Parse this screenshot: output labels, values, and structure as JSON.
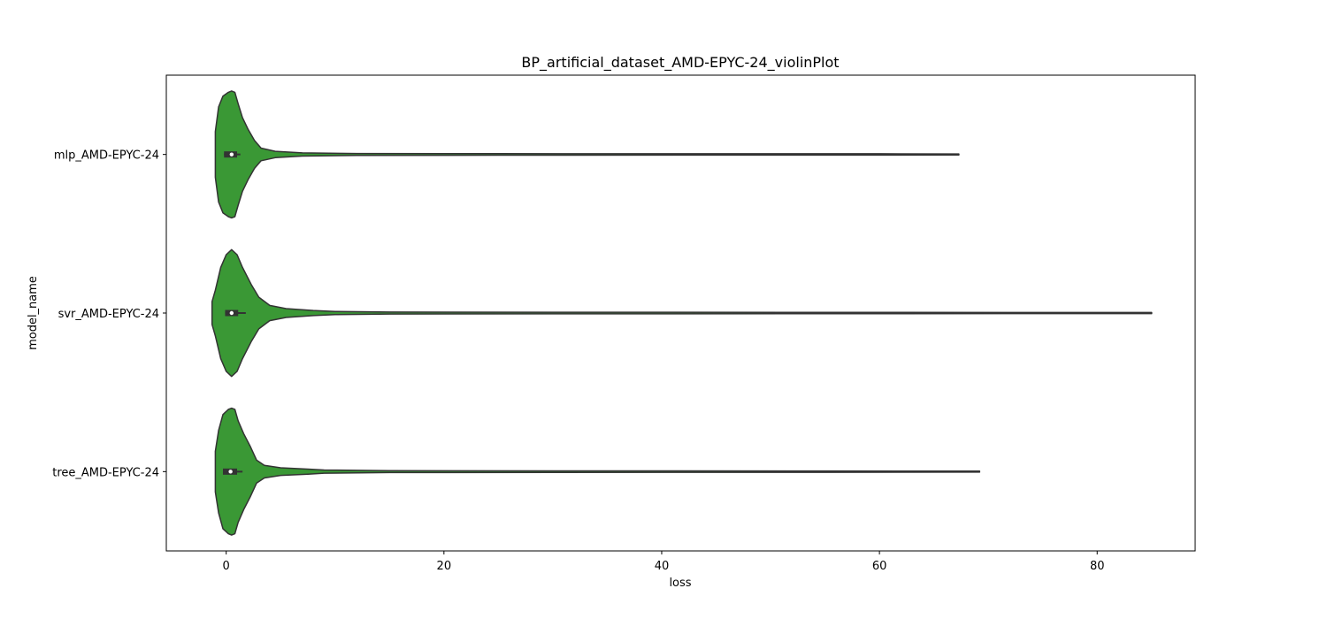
{
  "chart_data": {
    "type": "violin",
    "title": "BP_artificial_dataset_AMD-EPYC-24_violinPlot",
    "xlabel": "loss",
    "ylabel": "model_name",
    "xlim": [
      -5.5,
      89
    ],
    "x_ticks": [
      0,
      20,
      40,
      60,
      80
    ],
    "grid": false,
    "orientation": "horizontal",
    "fill_color": "#3a9835",
    "edge_color": "#333333",
    "categories": [
      "mlp_AMD-EPYC-24",
      "svr_AMD-EPYC-24",
      "tree_AMD-EPYC-24"
    ],
    "series": [
      {
        "category": "mlp_AMD-EPYC-24",
        "min": -1.0,
        "max": 67.3,
        "q1": -0.2,
        "median": 0.5,
        "q3": 1.0,
        "whisker_low": -0.2,
        "whisker_high": 1.3,
        "density": [
          [
            -1.0,
            0.36
          ],
          [
            -0.7,
            0.75
          ],
          [
            -0.3,
            0.92
          ],
          [
            0.2,
            0.98
          ],
          [
            0.5,
            1.0
          ],
          [
            0.8,
            0.98
          ],
          [
            1.1,
            0.8
          ],
          [
            1.5,
            0.58
          ],
          [
            2.0,
            0.4
          ],
          [
            2.6,
            0.22
          ],
          [
            3.2,
            0.1
          ],
          [
            4.5,
            0.05
          ],
          [
            7,
            0.025
          ],
          [
            12,
            0.015
          ],
          [
            25,
            0.012
          ],
          [
            45,
            0.01
          ],
          [
            60,
            0.01
          ],
          [
            67.3,
            0.008
          ]
        ]
      },
      {
        "category": "svr_AMD-EPYC-24",
        "min": -1.3,
        "max": 85.0,
        "q1": -0.1,
        "median": 0.5,
        "q3": 1.1,
        "whisker_low": -0.1,
        "whisker_high": 1.8,
        "density": [
          [
            -1.3,
            0.18
          ],
          [
            -1.0,
            0.36
          ],
          [
            -0.5,
            0.72
          ],
          [
            0.0,
            0.92
          ],
          [
            0.5,
            1.0
          ],
          [
            1.0,
            0.92
          ],
          [
            1.5,
            0.72
          ],
          [
            2.3,
            0.45
          ],
          [
            3.0,
            0.25
          ],
          [
            4.0,
            0.12
          ],
          [
            5.5,
            0.07
          ],
          [
            8,
            0.04
          ],
          [
            10,
            0.025
          ],
          [
            15,
            0.015
          ],
          [
            30,
            0.012
          ],
          [
            60,
            0.01
          ],
          [
            85,
            0.008
          ]
        ]
      },
      {
        "category": "tree_AMD-EPYC-24",
        "min": -1.0,
        "max": 69.2,
        "q1": -0.3,
        "median": 0.4,
        "q3": 1.0,
        "whisker_low": -0.3,
        "whisker_high": 1.5,
        "density": [
          [
            -1.0,
            0.32
          ],
          [
            -0.7,
            0.65
          ],
          [
            -0.3,
            0.9
          ],
          [
            0.2,
            0.98
          ],
          [
            0.5,
            1.0
          ],
          [
            0.8,
            0.98
          ],
          [
            1.1,
            0.8
          ],
          [
            1.6,
            0.6
          ],
          [
            2.2,
            0.4
          ],
          [
            2.8,
            0.18
          ],
          [
            3.5,
            0.1
          ],
          [
            5,
            0.06
          ],
          [
            7.5,
            0.04
          ],
          [
            9,
            0.025
          ],
          [
            15,
            0.015
          ],
          [
            30,
            0.012
          ],
          [
            55,
            0.01
          ],
          [
            69.2,
            0.008
          ]
        ]
      }
    ]
  }
}
